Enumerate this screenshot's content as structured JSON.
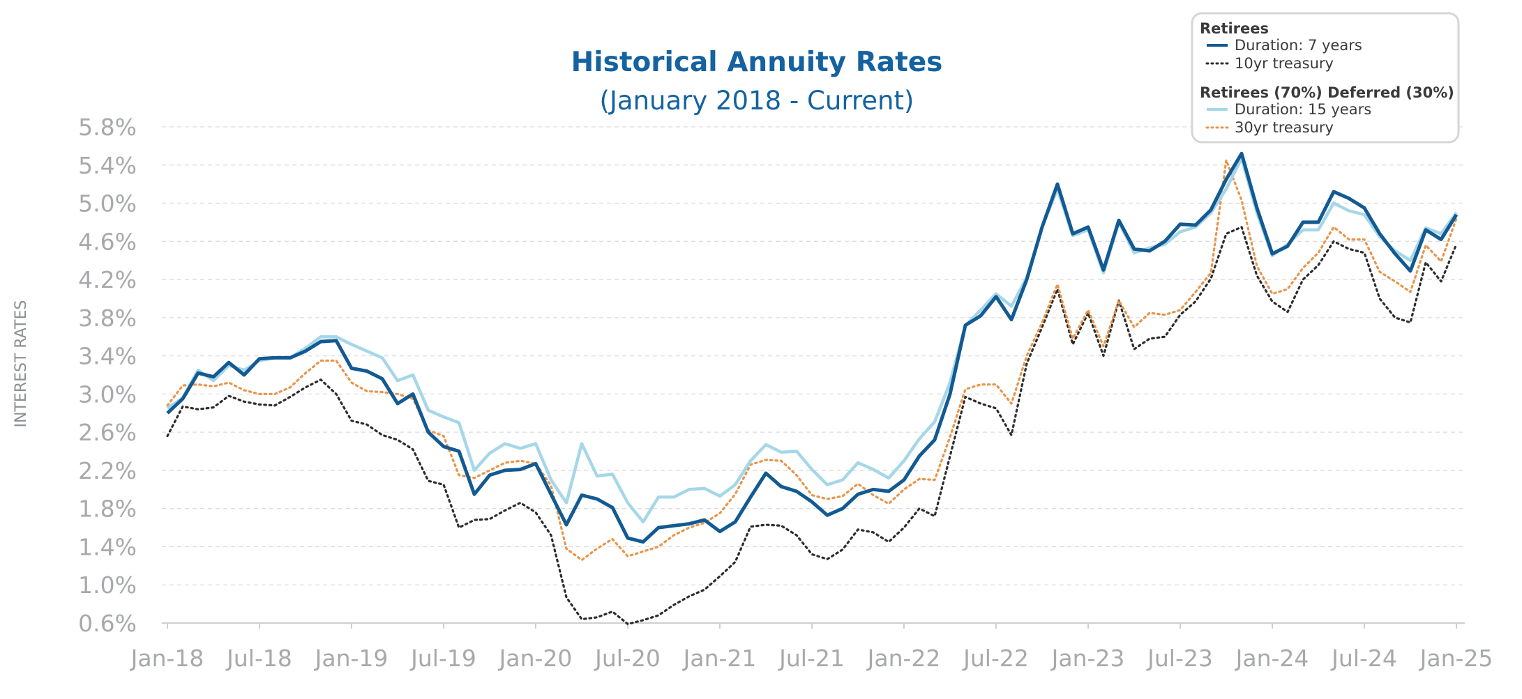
{
  "chart_data": {
    "type": "line",
    "title": "Historical Annuity Rates",
    "subtitle": "(January 2018 - Current)",
    "xlabel": "",
    "ylabel": "INTEREST RATES",
    "ylim": [
      0.6,
      5.8
    ],
    "grid": true,
    "legend_position": "top-right",
    "y_ticks": [
      "0.6%",
      "1.0%",
      "1.4%",
      "1.8%",
      "2.2%",
      "2.6%",
      "3.0%",
      "3.4%",
      "3.8%",
      "4.2%",
      "4.6%",
      "5.0%",
      "5.4%",
      "5.8%"
    ],
    "x_ticks": [
      "Jan-18",
      "Jul-18",
      "Jan-19",
      "Jul-19",
      "Jan-20",
      "Jul-20",
      "Jan-21",
      "Jul-21",
      "Jan-22",
      "Jul-22",
      "Jan-23",
      "Jul-23",
      "Jan-24",
      "Jul-24",
      "Jan-25"
    ],
    "legend_groups": [
      {
        "heading": "Retirees",
        "items": [
          {
            "label": "Duration: 7 years",
            "series": 0
          },
          {
            "label": "10yr treasury",
            "series": 1
          }
        ]
      },
      {
        "heading": "Retirees (70%) Deferred (30%)",
        "items": [
          {
            "label": "Duration: 15 years",
            "series": 2
          },
          {
            "label": "30yr treasury",
            "series": 3
          }
        ]
      }
    ],
    "series": [
      {
        "name": "Duration: 7 years",
        "color": "#135a92",
        "style": "solid",
        "values": [
          2.8,
          2.95,
          3.22,
          3.18,
          3.33,
          3.2,
          3.37,
          3.38,
          3.38,
          3.45,
          3.55,
          3.56,
          3.27,
          3.24,
          3.16,
          2.9,
          3.0,
          2.6,
          2.45,
          2.4,
          1.95,
          2.15,
          2.2,
          2.21,
          2.27,
          1.95,
          1.63,
          1.94,
          1.9,
          1.81,
          1.49,
          1.45,
          1.6,
          1.62,
          1.64,
          1.68,
          1.56,
          1.66,
          1.92,
          2.17,
          2.03,
          1.98,
          1.87,
          1.73,
          1.8,
          1.95,
          2.0,
          1.98,
          2.1,
          2.35,
          2.52,
          3.0,
          3.72,
          3.82,
          4.02,
          3.78,
          4.2,
          4.75,
          5.2,
          4.68,
          4.75,
          4.3,
          4.82,
          4.52,
          4.5,
          4.6,
          4.78,
          4.77,
          4.93,
          5.25,
          5.52,
          4.95,
          4.47,
          4.55,
          4.8,
          4.8,
          5.12,
          5.05,
          4.95,
          4.68,
          4.47,
          4.29,
          4.72,
          4.62,
          4.88
        ]
      },
      {
        "name": "10yr treasury",
        "color": "#2d2d2d",
        "style": "dotted",
        "values": [
          2.56,
          2.87,
          2.84,
          2.86,
          2.98,
          2.92,
          2.89,
          2.88,
          2.97,
          3.07,
          3.15,
          3.0,
          2.72,
          2.68,
          2.57,
          2.52,
          2.42,
          2.09,
          2.05,
          1.6,
          1.68,
          1.69,
          1.78,
          1.86,
          1.76,
          1.52,
          0.87,
          0.64,
          0.66,
          0.72,
          0.59,
          0.63,
          0.68,
          0.79,
          0.88,
          0.95,
          1.09,
          1.24,
          1.61,
          1.63,
          1.62,
          1.52,
          1.32,
          1.27,
          1.37,
          1.58,
          1.55,
          1.45,
          1.6,
          1.8,
          1.72,
          2.35,
          2.97,
          2.9,
          2.85,
          2.57,
          3.32,
          3.7,
          4.1,
          3.52,
          3.85,
          3.4,
          3.98,
          3.47,
          3.58,
          3.6,
          3.83,
          3.97,
          4.21,
          4.68,
          4.75,
          4.24,
          3.97,
          3.86,
          4.2,
          4.35,
          4.6,
          4.52,
          4.48,
          4.0,
          3.8,
          3.75,
          4.38,
          4.18,
          4.57
        ]
      },
      {
        "name": "Duration: 15 years",
        "color": "#a6d7e8",
        "style": "solid",
        "values": [
          2.85,
          2.96,
          3.25,
          3.14,
          3.3,
          3.25,
          3.35,
          3.38,
          3.38,
          3.48,
          3.6,
          3.6,
          3.52,
          3.45,
          3.38,
          3.14,
          3.2,
          2.83,
          2.76,
          2.7,
          2.2,
          2.38,
          2.48,
          2.43,
          2.48,
          2.1,
          1.86,
          2.48,
          2.14,
          2.16,
          1.86,
          1.66,
          1.92,
          1.92,
          2.0,
          2.01,
          1.93,
          2.05,
          2.3,
          2.47,
          2.39,
          2.4,
          2.21,
          2.05,
          2.1,
          2.28,
          2.21,
          2.12,
          2.3,
          2.53,
          2.71,
          3.12,
          3.72,
          3.88,
          4.05,
          3.92,
          4.22,
          4.75,
          5.15,
          4.66,
          4.72,
          4.27,
          4.8,
          4.48,
          4.53,
          4.57,
          4.7,
          4.75,
          4.9,
          5.15,
          5.47,
          4.9,
          4.45,
          4.57,
          4.72,
          4.72,
          5.0,
          4.92,
          4.88,
          4.65,
          4.5,
          4.4,
          4.74,
          4.68,
          4.9
        ]
      },
      {
        "name": "30yr treasury",
        "color": "#e8954a",
        "style": "dotted",
        "values": [
          2.88,
          3.09,
          3.1,
          3.08,
          3.12,
          3.04,
          3.0,
          3.0,
          3.07,
          3.22,
          3.35,
          3.35,
          3.12,
          3.03,
          3.02,
          3.0,
          2.95,
          2.62,
          2.56,
          2.15,
          2.12,
          2.2,
          2.28,
          2.3,
          2.27,
          2.04,
          1.38,
          1.26,
          1.38,
          1.48,
          1.3,
          1.35,
          1.4,
          1.52,
          1.6,
          1.65,
          1.75,
          1.95,
          2.26,
          2.31,
          2.3,
          2.15,
          1.94,
          1.9,
          1.93,
          2.06,
          1.94,
          1.85,
          2.0,
          2.11,
          2.1,
          2.55,
          3.05,
          3.1,
          3.1,
          2.9,
          3.4,
          3.75,
          4.15,
          3.58,
          3.88,
          3.5,
          3.98,
          3.7,
          3.85,
          3.83,
          3.88,
          4.07,
          4.27,
          5.45,
          5.03,
          4.34,
          4.05,
          4.1,
          4.32,
          4.48,
          4.75,
          4.62,
          4.62,
          4.28,
          4.18,
          4.07,
          4.56,
          4.39,
          4.84
        ]
      }
    ]
  }
}
